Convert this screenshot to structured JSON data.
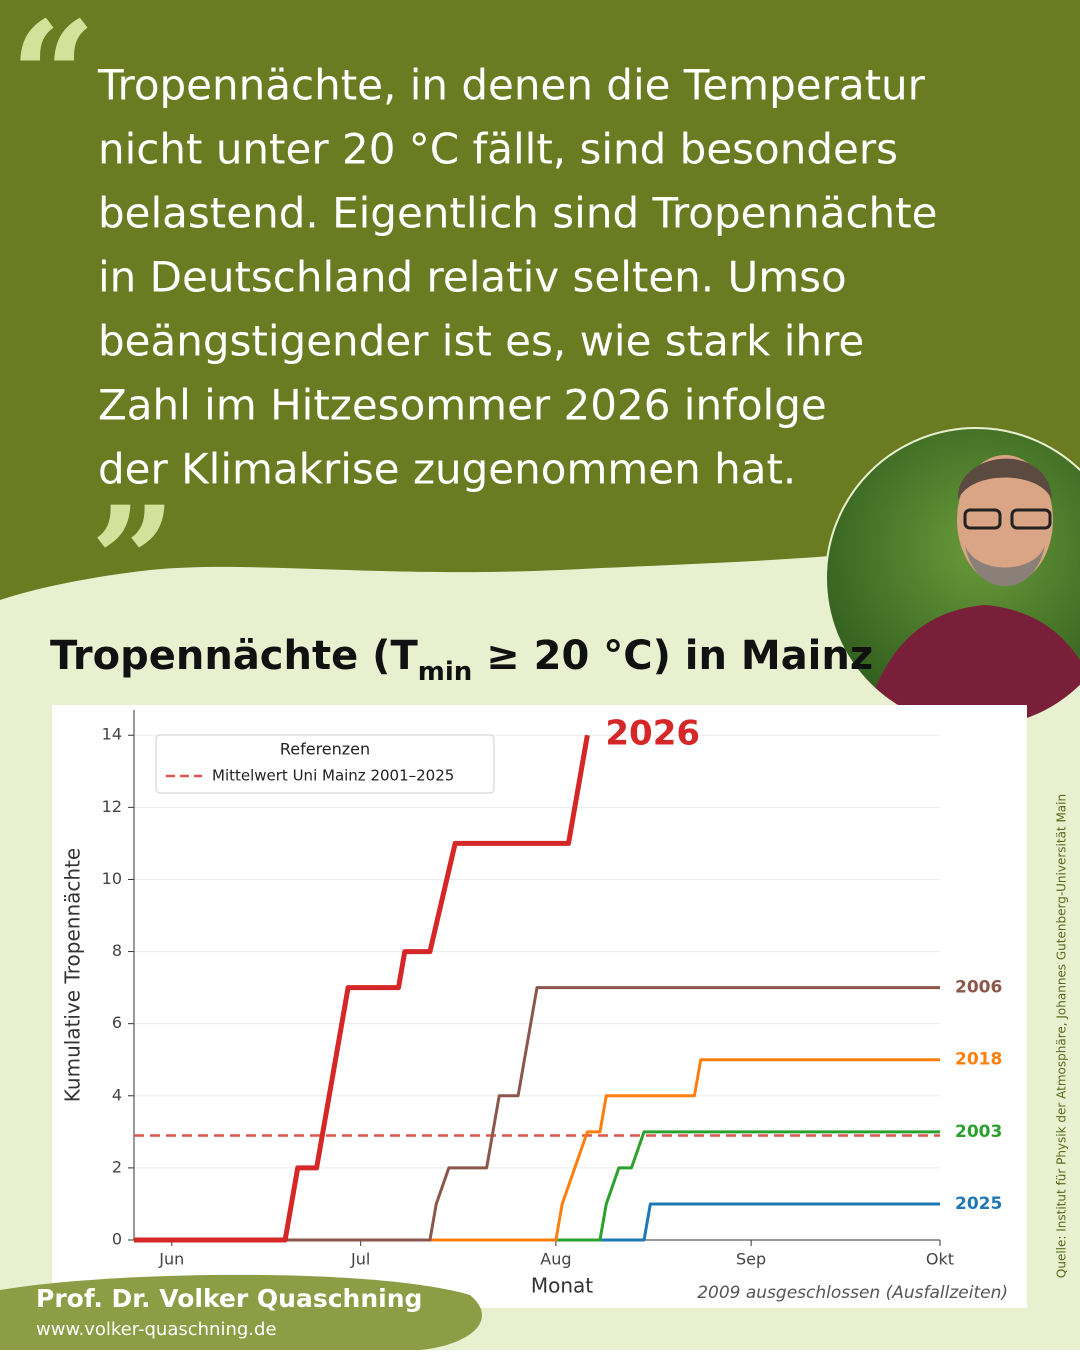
{
  "quote": {
    "lines": [
      "Tropennächte, in denen die Temperatur",
      "nicht unter 20 °C fällt, sind besonders",
      "belastend. Eigentlich sind Tropennächte",
      "in Deutschland relativ selten. Umso",
      "beängstigender ist es, wie stark ihre",
      "Zahl im Hitzesommer 2026 infolge",
      "der Klimakrise zugenommen hat."
    ]
  },
  "chart_data": {
    "type": "line",
    "title": {
      "before": "Tropennächte (T",
      "sub": "min",
      "after": " ≥ 20 °C) in Mainz"
    },
    "y_label": "Kumulative Tropennächte",
    "x_label": "Monat",
    "note": "2009 ausgeschlossen (Ausfallzeiten)",
    "xlim": [
      -6,
      122
    ],
    "xticks": [
      {
        "value": 0,
        "label": "Jun"
      },
      {
        "value": 30,
        "label": "Jul"
      },
      {
        "value": 61,
        "label": "Aug"
      },
      {
        "value": 92,
        "label": "Sep"
      },
      {
        "value": 122,
        "label": "Okt"
      }
    ],
    "ylim": [
      0,
      14.7
    ],
    "yticks": [
      0,
      2,
      4,
      6,
      8,
      10,
      12,
      14
    ],
    "grid": true,
    "legend_title": "Referenzen",
    "reference": {
      "name": "Mittelwert Uni Mainz 2001–2025",
      "value": 2.9,
      "color": "#e0554c"
    },
    "series": [
      {
        "name": "2026",
        "color": "#d62728",
        "x": [
          -6,
          18,
          20,
          23,
          28,
          36,
          37,
          41,
          45,
          63,
          66
        ],
        "values": [
          0,
          0,
          2,
          2,
          7,
          7,
          8,
          8,
          11,
          11,
          14
        ]
      },
      {
        "name": "2006",
        "color": "#8c564b",
        "x": [
          -6,
          41,
          42,
          44,
          50,
          52,
          55,
          58,
          122
        ],
        "values": [
          0,
          0,
          1,
          2,
          2,
          4,
          4,
          7,
          7
        ]
      },
      {
        "name": "2018",
        "color": "#ff7f0e",
        "x": [
          -6,
          61,
          62,
          64,
          66,
          68,
          69,
          83,
          84,
          122
        ],
        "values": [
          0,
          0,
          1,
          2,
          3,
          3,
          4,
          4,
          5,
          5
        ]
      },
      {
        "name": "2003",
        "color": "#2ca02c",
        "x": [
          -6,
          68,
          69,
          71,
          73,
          75,
          122
        ],
        "values": [
          0,
          0,
          1,
          2,
          2,
          3,
          3
        ]
      },
      {
        "name": "2025",
        "color": "#1f77b4",
        "x": [
          -6,
          75,
          76,
          122
        ],
        "values": [
          0,
          0,
          1,
          1
        ]
      }
    ]
  },
  "author": {
    "name": "Prof. Dr. Volker Quaschning",
    "url": "www.volker-quaschning.de"
  },
  "source": "Quelle: Institut für Physik der Atmosphäre, Johannes Gutenberg-Universität Main"
}
